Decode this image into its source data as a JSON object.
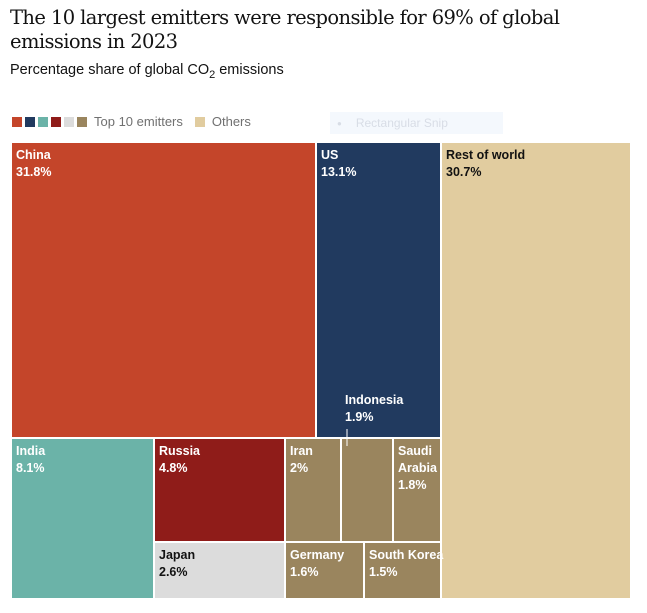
{
  "chart_data": {
    "type": "treemap",
    "title": "The 10 largest emitters were responsible for 69% of global emissions in 2023",
    "subtitle_prefix": "Percentage share of global CO",
    "subtitle_sub": "2",
    "subtitle_suffix": " emissions",
    "legend": {
      "position": "top-left",
      "top10_colors": [
        "#c4452a",
        "#213a5f",
        "#6bb3a8",
        "#8f1c19",
        "#dcdcdc",
        "#9a855e"
      ],
      "top10_label": "Top 10 emitters",
      "others_color": "#e1cc9f",
      "others_label": "Others"
    },
    "items": [
      {
        "name": "China",
        "label": "China",
        "value": 31.8,
        "value_label": "31.8%",
        "group": "Top 10 emitters",
        "color": "#c4452a",
        "text_color": "#ffffff"
      },
      {
        "name": "US",
        "label": "US",
        "value": 13.1,
        "value_label": "13.1%",
        "group": "Top 10 emitters",
        "color": "#213a5f",
        "text_color": "#ffffff"
      },
      {
        "name": "Rest of world",
        "label": "Rest of world",
        "value": 30.7,
        "value_label": "30.7%",
        "group": "Others",
        "color": "#e1cc9f",
        "text_color": "#121212"
      },
      {
        "name": "India",
        "label": "India",
        "value": 8.1,
        "value_label": "8.1%",
        "group": "Top 10 emitters",
        "color": "#6bb3a8",
        "text_color": "#ffffff"
      },
      {
        "name": "Russia",
        "label": "Russia",
        "value": 4.8,
        "value_label": "4.8%",
        "group": "Top 10 emitters",
        "color": "#8f1c19",
        "text_color": "#ffffff"
      },
      {
        "name": "Japan",
        "label": "Japan",
        "value": 2.6,
        "value_label": "2.6%",
        "group": "Top 10 emitters",
        "color": "#dcdcdc",
        "text_color": "#121212"
      },
      {
        "name": "Iran",
        "label": "Iran",
        "value": 2.0,
        "value_label": "2%",
        "group": "Top 10 emitters",
        "color": "#9a855e",
        "text_color": "#ffffff"
      },
      {
        "name": "Indonesia",
        "label": "Indonesia",
        "value": 1.9,
        "value_label": "1.9%",
        "group": "Top 10 emitters",
        "color": "#9a855e",
        "text_color": "#ffffff",
        "label_outside": true
      },
      {
        "name": "Saudi Arabia",
        "label": "Saudi Arabia",
        "value": 1.8,
        "value_label": "1.8%",
        "group": "Top 10 emitters",
        "color": "#9a855e",
        "text_color": "#ffffff"
      },
      {
        "name": "Germany",
        "label": "Germany",
        "value": 1.6,
        "value_label": "1.6%",
        "group": "Top 10 emitters",
        "color": "#9a855e",
        "text_color": "#ffffff"
      },
      {
        "name": "South Korea",
        "label": "South Korea",
        "value": 1.5,
        "value_label": "1.5%",
        "group": "Top 10 emitters",
        "color": "#9a855e",
        "text_color": "#ffffff"
      }
    ]
  },
  "overlay": {
    "snip_label": "Rectangular Snip",
    "snip_icon": "record-dot-icon"
  }
}
